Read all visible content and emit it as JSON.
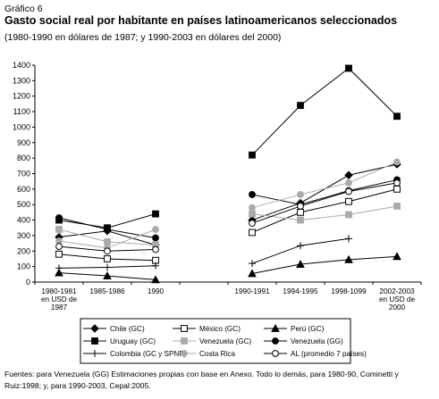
{
  "figure_label": "Gráfico 6",
  "title": "Gasto social real por habitante en países latinoamericanos seleccionados",
  "subtitle": "(1980-1990 en dólares de 1987; y 1990-2003 en dólares del 2000)",
  "source_note": "Fuentes: para Venezuela (GG) Estimaciones propias con base en Anexo. Todo lo demás, para 1980-90, Cominetti y Ruiz:1998; y, para 1990-2003, Cepal:2005.",
  "chart_data": {
    "type": "line",
    "categories": [
      [
        "1980-1981",
        "en USD de",
        "1987"
      ],
      [
        "1985-1986"
      ],
      [
        "1990"
      ],
      [
        ""
      ],
      [
        "1990-1991"
      ],
      [
        "1994-1995"
      ],
      [
        "1998-1099"
      ],
      [
        "2002-2003",
        "en USD de",
        "2000"
      ]
    ],
    "ylim": [
      0,
      1400
    ],
    "yticks": [
      0,
      100,
      200,
      300,
      400,
      500,
      600,
      700,
      800,
      900,
      1000,
      1100,
      1200,
      1300,
      1400
    ],
    "grid": false,
    "legend_position": "bottom",
    "series": [
      {
        "name": "Chile (GC)",
        "marker": "diamond",
        "color": "#000000",
        "values": [
          290,
          330,
          240,
          null,
          400,
          510,
          690,
          760
        ]
      },
      {
        "name": "México (GC)",
        "marker": "square-open",
        "color": "#000000",
        "values": [
          180,
          150,
          140,
          null,
          320,
          450,
          520,
          600
        ]
      },
      {
        "name": "Perú (GC)",
        "marker": "triangle",
        "color": "#000000",
        "values": [
          60,
          40,
          15,
          null,
          55,
          115,
          145,
          165
        ]
      },
      {
        "name": "Uruguay (GC)",
        "marker": "square",
        "color": "#000000",
        "values": [
          400,
          350,
          440,
          null,
          820,
          1140,
          1380,
          1070
        ]
      },
      {
        "name": "Venezuela (GC)",
        "marker": "square",
        "color": "#aaaaaa",
        "values": [
          340,
          260,
          240,
          null,
          440,
          400,
          435,
          490
        ]
      },
      {
        "name": "Venezuela (GG)",
        "marker": "circle",
        "color": "#000000",
        "values": [
          415,
          340,
          285,
          null,
          565,
          500,
          590,
          660
        ]
      },
      {
        "name": "Colombia (GC y SPNF)",
        "marker": "plus",
        "color": "#000000",
        "values": [
          90,
          95,
          105,
          null,
          120,
          235,
          280,
          null
        ]
      },
      {
        "name": "Costa Rica",
        "marker": "circle",
        "color": "#aaaaaa",
        "values": [
          265,
          220,
          340,
          null,
          480,
          565,
          640,
          775
        ]
      },
      {
        "name": "AL (promedio 7 países)",
        "marker": "circle-open",
        "color": "#000000",
        "values": [
          230,
          200,
          210,
          null,
          380,
          490,
          585,
          640
        ]
      }
    ]
  }
}
